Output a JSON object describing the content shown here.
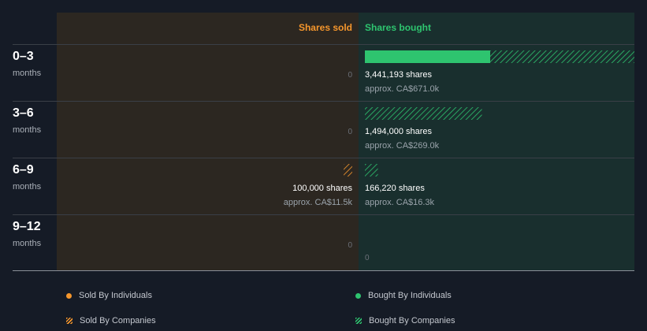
{
  "chart_data": {
    "type": "bar",
    "column_headers": {
      "sold": "Shares sold",
      "bought": "Shares bought"
    },
    "categories": [
      {
        "label": "0–3",
        "sublabel": "months"
      },
      {
        "label": "3–6",
        "sublabel": "months"
      },
      {
        "label": "6–9",
        "sublabel": "months"
      },
      {
        "label": "9–12",
        "sublabel": "months"
      }
    ],
    "sold": [
      {
        "individuals": 0,
        "companies": 0,
        "shares_text": "",
        "approx_text": "",
        "zero_text": "0"
      },
      {
        "individuals": 0,
        "companies": 0,
        "shares_text": "",
        "approx_text": "",
        "zero_text": "0"
      },
      {
        "individuals": 0,
        "companies": 100000,
        "shares_text": "100,000 shares",
        "approx_text": "approx. CA$11.5k",
        "zero_text": ""
      },
      {
        "individuals": 0,
        "companies": 0,
        "shares_text": "",
        "approx_text": "",
        "zero_text": "0"
      }
    ],
    "bought": [
      {
        "individuals": 1600000,
        "companies": 1841193,
        "shares_text": "3,441,193 shares",
        "approx_text": "approx. CA$671.0k",
        "zero_text": ""
      },
      {
        "individuals": 0,
        "companies": 1494000,
        "shares_text": "1,494,000 shares",
        "approx_text": "approx. CA$269.0k",
        "zero_text": ""
      },
      {
        "individuals": 0,
        "companies": 166220,
        "shares_text": "166,220 shares",
        "approx_text": "approx. CA$16.3k",
        "zero_text": ""
      },
      {
        "individuals": 0,
        "companies": 0,
        "shares_text": "",
        "approx_text": "",
        "zero_text": "0"
      }
    ],
    "scale_max": 3441193,
    "legend": [
      {
        "label": "Sold By Individuals",
        "style": "dot",
        "color": "#f5962c"
      },
      {
        "label": "Bought By Individuals",
        "style": "dot",
        "color": "#2ec46f"
      },
      {
        "label": "Sold By Companies",
        "style": "hatch",
        "color": "#f5962c"
      },
      {
        "label": "Bought By Companies",
        "style": "hatch",
        "color": "#2ec46f"
      }
    ],
    "colors": {
      "background": "#151b26",
      "sold_panel": "#2c2721",
      "bought_panel": "#192f2e",
      "sold_accent": "#f5962c",
      "bought_accent": "#2ec46f"
    }
  }
}
